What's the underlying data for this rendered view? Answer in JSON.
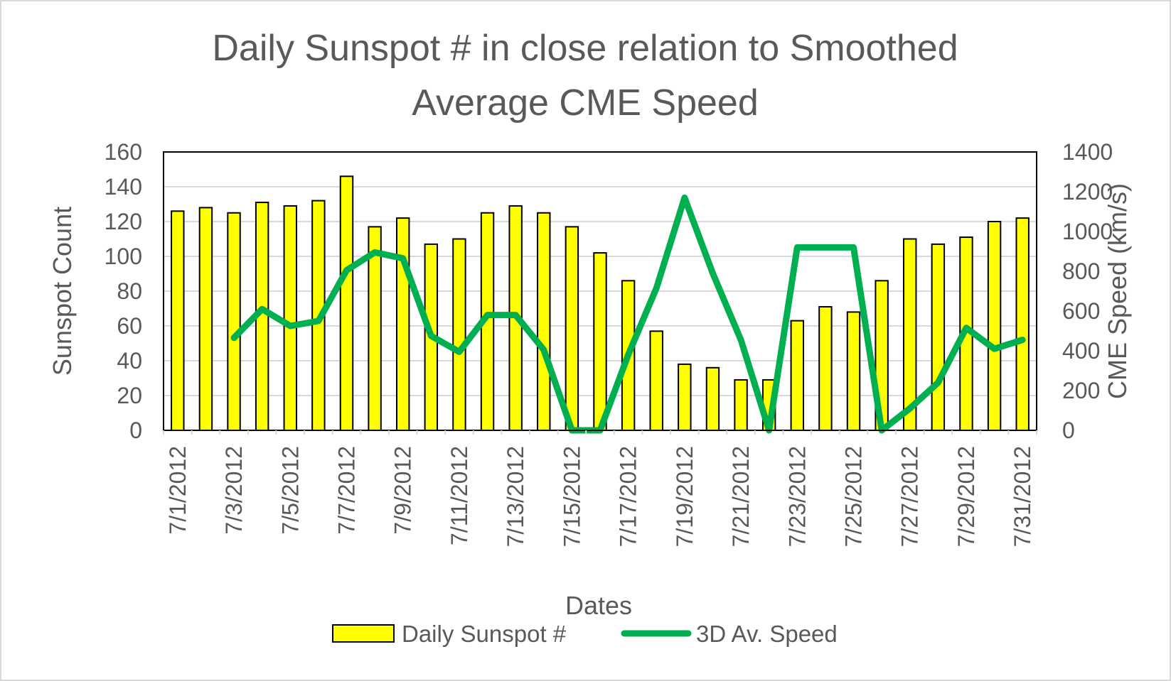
{
  "chart_data": {
    "type": "bar",
    "title_lines": [
      "Daily Sunspot # in close relation to Smoothed",
      "Average CME Speed"
    ],
    "xlabel": "Dates",
    "ylabel": "Sunspot Count",
    "y2label": "CME Speed (km/s)",
    "ylim": [
      0,
      160
    ],
    "y2lim": [
      0,
      1400
    ],
    "yticks": [
      "0",
      "20",
      "40",
      "60",
      "80",
      "100",
      "120",
      "140",
      "160"
    ],
    "y2ticks": [
      "0",
      "200",
      "400",
      "600",
      "800",
      "1000",
      "1200",
      "1400"
    ],
    "grid": true,
    "legend_position": "bottom",
    "categories": [
      "7/1/2012",
      "7/2/2012",
      "7/3/2012",
      "7/4/2012",
      "7/5/2012",
      "7/6/2012",
      "7/7/2012",
      "7/8/2012",
      "7/9/2012",
      "7/10/2012",
      "7/11/2012",
      "7/12/2012",
      "7/13/2012",
      "7/14/2012",
      "7/15/2012",
      "7/16/2012",
      "7/17/2012",
      "7/18/2012",
      "7/19/2012",
      "7/20/2012",
      "7/21/2012",
      "7/22/2012",
      "7/23/2012",
      "7/24/2012",
      "7/25/2012",
      "7/26/2012",
      "7/27/2012",
      "7/28/2012",
      "7/29/2012",
      "7/30/2012",
      "7/31/2012"
    ],
    "xtick_labels": [
      "7/1/2012",
      "7/3/2012",
      "7/5/2012",
      "7/7/2012",
      "7/9/2012",
      "7/11/2012",
      "7/13/2012",
      "7/15/2012",
      "7/17/2012",
      "7/19/2012",
      "7/21/2012",
      "7/23/2012",
      "7/25/2012",
      "7/27/2012",
      "7/29/2012",
      "7/31/2012"
    ],
    "series": [
      {
        "name": "Daily Sunspot #",
        "type": "bar",
        "axis": "left",
        "color": "#ffff00",
        "values": [
          126,
          128,
          125,
          131,
          129,
          132,
          146,
          117,
          122,
          107,
          110,
          125,
          129,
          125,
          117,
          102,
          86,
          57,
          38,
          36,
          29,
          29,
          63,
          71,
          68,
          86,
          110,
          107,
          111,
          120,
          122
        ]
      },
      {
        "name": "3D Av. Speed",
        "type": "line",
        "axis": "right",
        "color": "#00b050",
        "values": [
          null,
          null,
          465,
          610,
          525,
          550,
          805,
          895,
          865,
          475,
          395,
          580,
          580,
          405,
          0,
          0,
          380,
          715,
          1170,
          790,
          455,
          0,
          920,
          920,
          920,
          0,
          110,
          240,
          515,
          410,
          455
        ]
      }
    ]
  }
}
